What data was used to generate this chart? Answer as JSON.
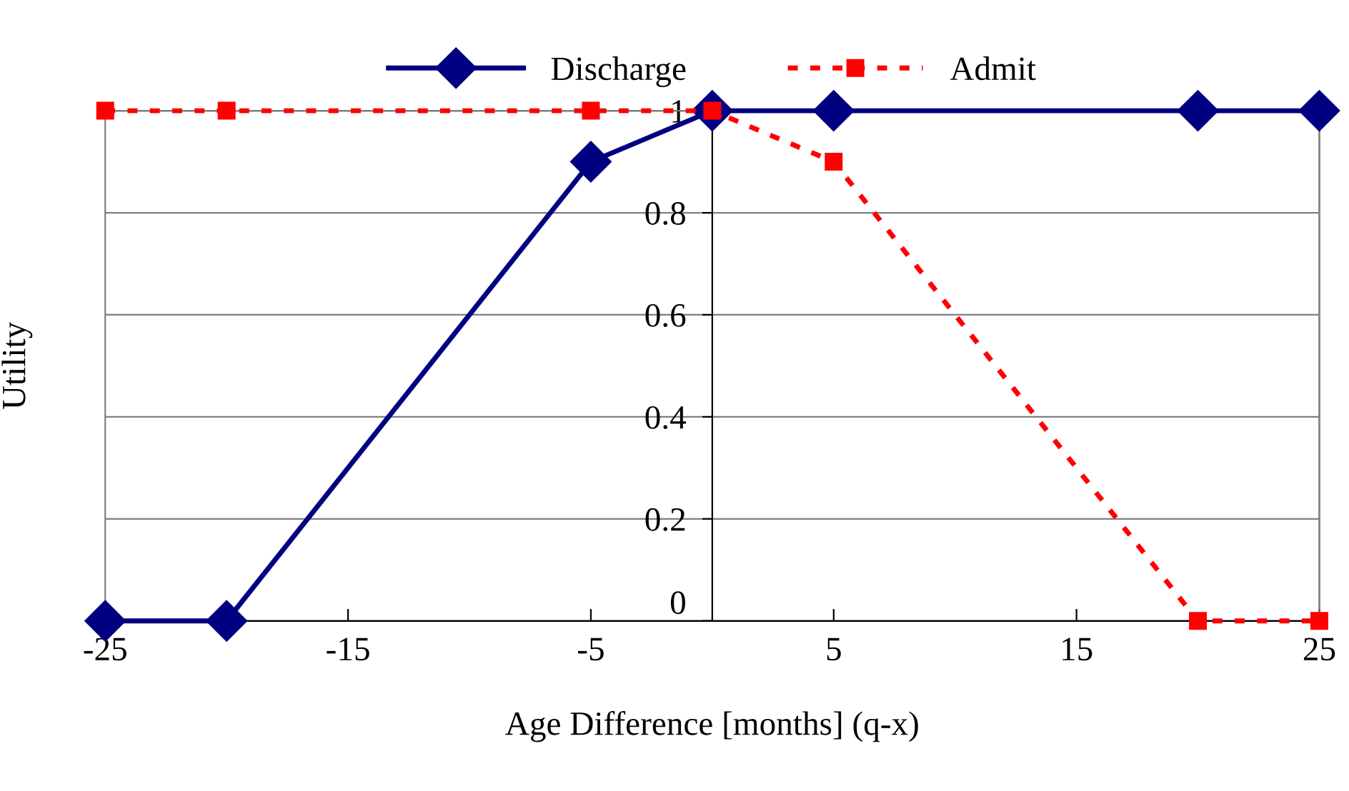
{
  "chart_data": {
    "type": "line",
    "xlabel": "Age Difference [months] (q-x)",
    "ylabel": "Utility",
    "xlim": [
      -25,
      25
    ],
    "xticks": [
      -25,
      -15,
      -5,
      5,
      15,
      25
    ],
    "ylim": [
      0,
      1
    ],
    "yticks": [
      0,
      0.2,
      0.4,
      0.6,
      0.8,
      1
    ],
    "grid": "y",
    "legend": "top",
    "series": [
      {
        "name": "Discharge",
        "color": "#000080",
        "x": [
          -25,
          -20,
          -5,
          0,
          5,
          20,
          25
        ],
        "values": [
          0,
          0,
          0.9,
          1,
          1,
          1,
          1
        ],
        "marker": "diamond",
        "line_style": "solid"
      },
      {
        "name": "Admit",
        "color": "#ff0000",
        "x": [
          -25,
          -20,
          -5,
          0,
          5,
          20,
          25
        ],
        "values": [
          1,
          1,
          1,
          1,
          0.9,
          0,
          0
        ],
        "marker": "square",
        "line_style": "dotted"
      }
    ]
  }
}
